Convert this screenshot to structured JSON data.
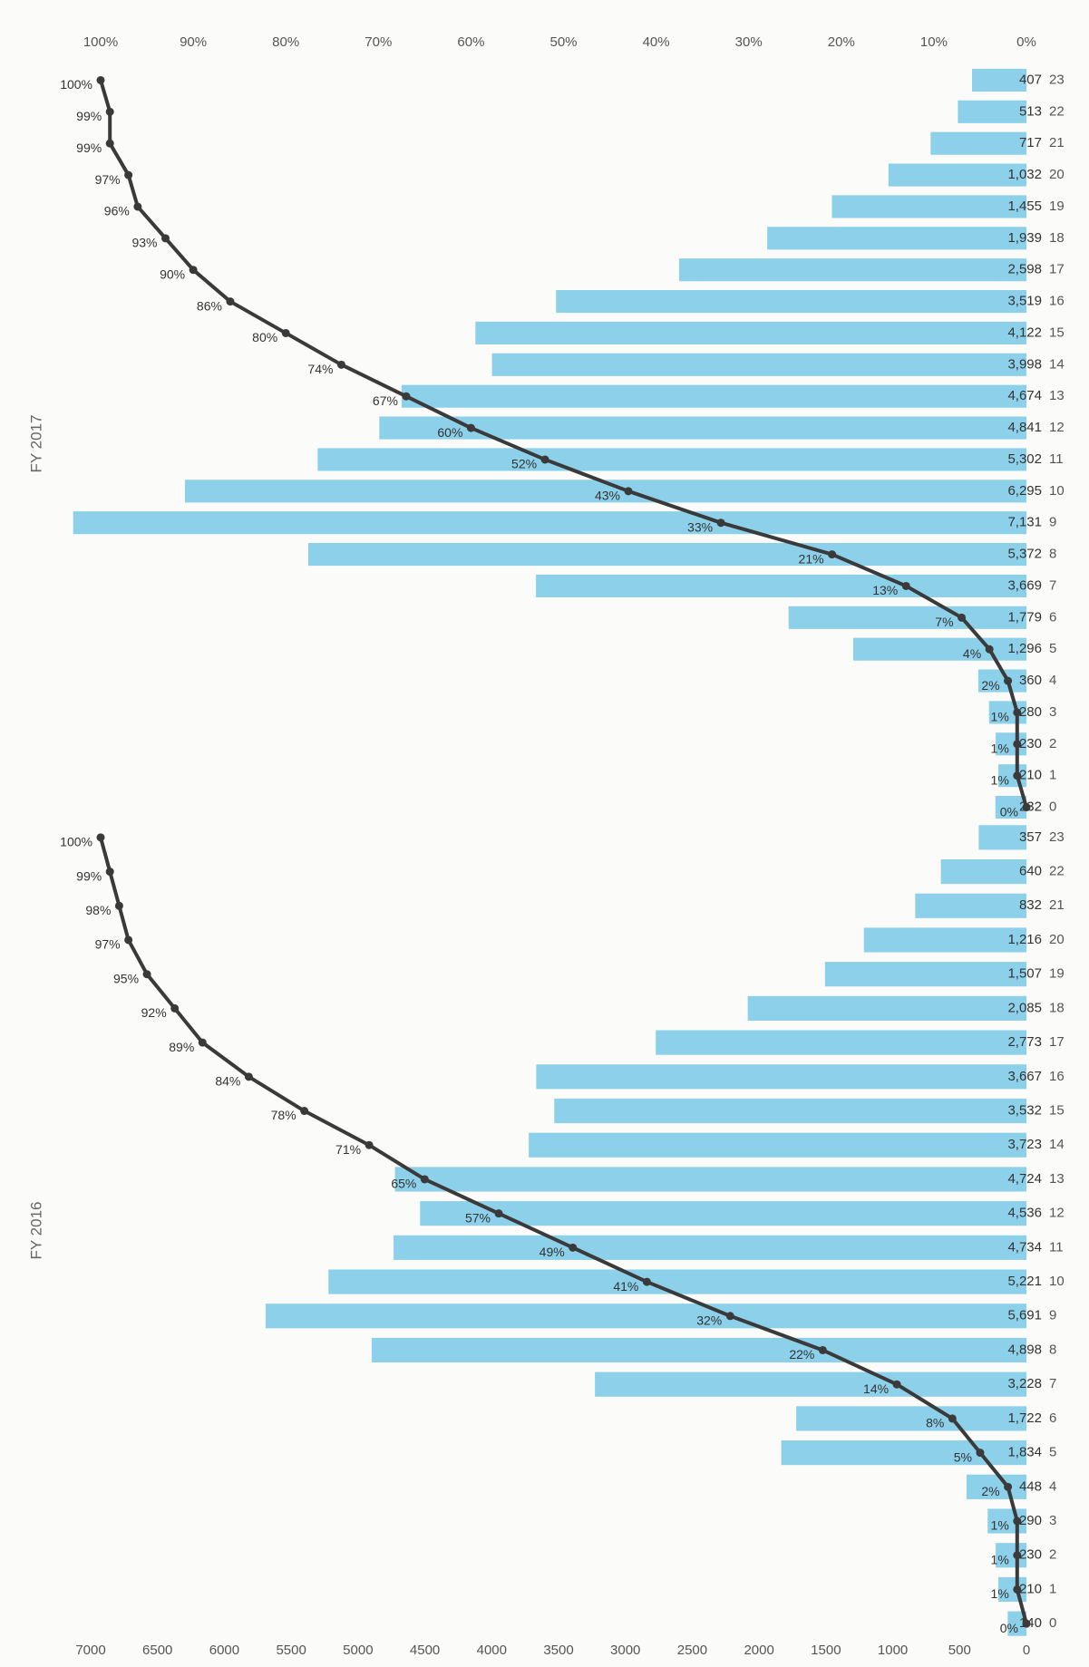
{
  "chart_data": [
    {
      "type": "bar",
      "title": "FY 2016",
      "categories": [
        "0",
        "1",
        "2",
        "3",
        "4",
        "5",
        "6",
        "7",
        "8",
        "9",
        "10",
        "11",
        "12",
        "13",
        "14",
        "15",
        "16",
        "17",
        "18",
        "19",
        "20",
        "21",
        "22",
        "23"
      ],
      "series": [
        {
          "color": "#8dd0ea",
          "values": [
            140,
            210,
            230,
            290,
            448,
            1834,
            1722,
            3228,
            4898,
            5691,
            5221,
            4734,
            4536,
            4724,
            3723,
            3532,
            3667,
            2773,
            2085,
            1507,
            1216,
            832,
            640,
            357
          ],
          "value_labels": [
            "140",
            "210",
            "230",
            "290",
            "448",
            "1,834",
            "1,722",
            "3,228",
            "4,898",
            "5,691",
            "5,221",
            "4,734",
            "4,536",
            "4,724",
            "3,723",
            "3,532",
            "3,667",
            "2,773",
            "2,085",
            "1,507",
            "1,216",
            "832",
            "640",
            "357"
          ]
        },
        {
          "type": "line",
          "axis": "y2",
          "color": "#3a3a3a",
          "values": [
            0,
            1,
            1,
            1,
            2,
            5,
            8,
            14,
            22,
            32,
            41,
            49,
            57,
            65,
            71,
            78,
            84,
            89,
            92,
            95,
            97,
            98,
            99,
            100
          ],
          "value_labels": [
            "0%",
            "1%",
            "1%",
            "1%",
            "2%",
            "5%",
            "8%",
            "14%",
            "22%",
            "32%",
            "41%",
            "49%",
            "57%",
            "65%",
            "71%",
            "78%",
            "84%",
            "89%",
            "92%",
            "95%",
            "97%",
            "98%",
            "99%",
            "100%"
          ]
        }
      ],
      "ylim": [
        0,
        7000
      ],
      "yticks": [
        0,
        500,
        1000,
        1500,
        2000,
        2500,
        3000,
        3500,
        4000,
        4500,
        5000,
        5500,
        6000,
        6500,
        7000
      ],
      "y2lim": [
        0,
        100
      ]
    },
    {
      "type": "bar",
      "title": "FY 2017",
      "categories": [
        "0",
        "1",
        "2",
        "3",
        "4",
        "5",
        "6",
        "7",
        "8",
        "9",
        "10",
        "11",
        "12",
        "13",
        "14",
        "15",
        "16",
        "17",
        "18",
        "19",
        "20",
        "21",
        "22",
        "23"
      ],
      "series": [
        {
          "color": "#8dd0ea",
          "values": [
            232,
            210,
            230,
            280,
            360,
            1296,
            1779,
            3669,
            5372,
            7131,
            6295,
            5302,
            4841,
            4674,
            3998,
            4122,
            3519,
            2598,
            1939,
            1455,
            1032,
            717,
            513,
            407
          ],
          "value_labels": [
            "232",
            "210",
            "230",
            "280",
            "360",
            "1,296",
            "1,779",
            "3,669",
            "5,372",
            "7,131",
            "6,295",
            "5,302",
            "4,841",
            "4,674",
            "3,998",
            "4,122",
            "3,519",
            "2,598",
            "1,939",
            "1,455",
            "1,032",
            "717",
            "513",
            "407"
          ]
        },
        {
          "type": "line",
          "axis": "y2",
          "color": "#3a3a3a",
          "values": [
            0,
            1,
            1,
            1,
            2,
            4,
            7,
            13,
            21,
            33,
            43,
            52,
            60,
            67,
            74,
            80,
            86,
            90,
            93,
            96,
            97,
            99,
            99,
            100
          ],
          "value_labels": [
            "0%",
            "1%",
            "1%",
            "1%",
            "2%",
            "4%",
            "7%",
            "13%",
            "21%",
            "33%",
            "43%",
            "52%",
            "60%",
            "67%",
            "74%",
            "80%",
            "86%",
            "90%",
            "93%",
            "96%",
            "97%",
            "99%",
            "99%",
            "100%"
          ]
        }
      ],
      "ylim": [
        0,
        7000
      ],
      "y2lim": [
        0,
        100
      ],
      "y2ticks": [
        {
          "value": 0,
          "label": "0%"
        },
        {
          "value": 10,
          "label": "10%"
        },
        {
          "value": 20,
          "label": "20%"
        },
        {
          "value": 30,
          "label": "30%"
        },
        {
          "value": 40,
          "label": "40%"
        },
        {
          "value": 50,
          "label": "50%"
        },
        {
          "value": 60,
          "label": "60%"
        },
        {
          "value": 70,
          "label": "70%"
        },
        {
          "value": 80,
          "label": "80%"
        },
        {
          "value": 90,
          "label": "90%"
        },
        {
          "value": 100,
          "label": "100%"
        }
      ]
    }
  ]
}
